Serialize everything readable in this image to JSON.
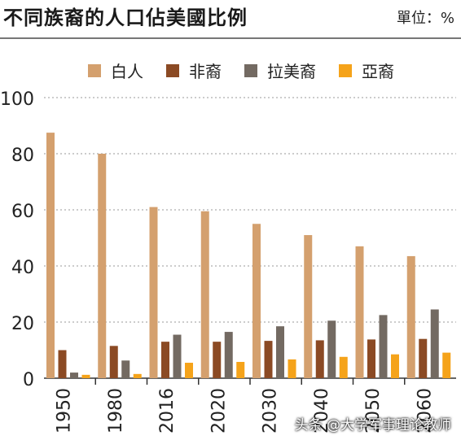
{
  "header": {
    "title": "不同族裔的人口佔美國比例",
    "unit": "單位：%"
  },
  "watermark": "头条 @大学军事理论教师",
  "chart_data": {
    "type": "bar",
    "categories": [
      "1950",
      "1980",
      "2016",
      "2020",
      "2030",
      "2040",
      "2050",
      "2060"
    ],
    "series": [
      {
        "name": "白人",
        "color": "#d4a06e",
        "values": [
          87.5,
          80,
          61,
          59.5,
          55,
          51,
          47,
          43.5
        ]
      },
      {
        "name": "非裔",
        "color": "#8b4a24",
        "values": [
          10,
          11.5,
          13,
          13,
          13.3,
          13.5,
          13.8,
          14
        ]
      },
      {
        "name": "拉美裔",
        "color": "#736a62",
        "values": [
          2,
          6.3,
          15.5,
          16.5,
          18.5,
          20.5,
          22.5,
          24.5
        ]
      },
      {
        "name": "亞裔",
        "color": "#f5a31a",
        "values": [
          1.2,
          1.5,
          5.5,
          5.8,
          6.7,
          7.6,
          8.5,
          9.1
        ]
      }
    ],
    "yticks": [
      "100",
      "80",
      "60",
      "40",
      "20",
      "0"
    ],
    "ylim": [
      0,
      100
    ],
    "grid": true,
    "legend_position": "top"
  }
}
